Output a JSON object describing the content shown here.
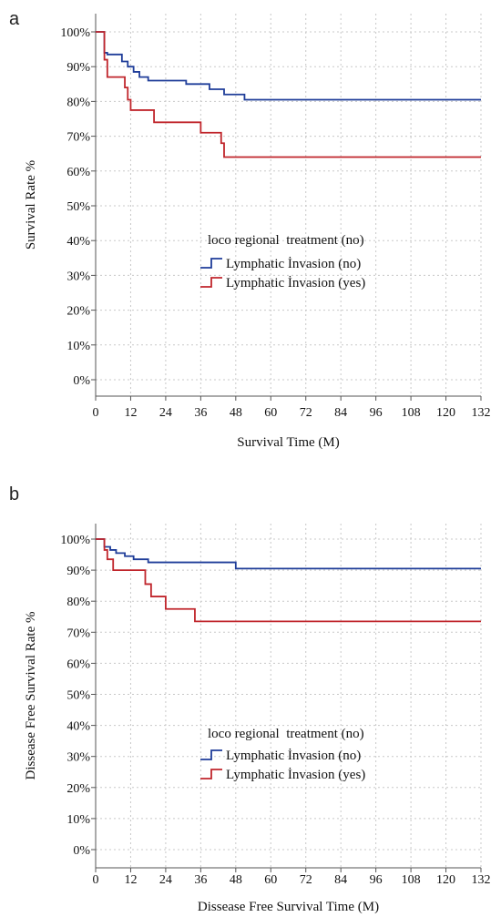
{
  "chart_data": [
    {
      "panel_label": "a",
      "type": "line",
      "step": true,
      "title": "",
      "xlabel": "Survival Time (M)",
      "ylabel": "Survival Rate %",
      "xlim": [
        0,
        132
      ],
      "ylim": [
        0,
        100
      ],
      "x_ticks": [
        0,
        12,
        24,
        36,
        48,
        60,
        72,
        84,
        96,
        108,
        120,
        132
      ],
      "x_tick_labels": [
        "0",
        "12",
        "24",
        "36",
        "48",
        "60",
        "72",
        "84",
        "96",
        "108",
        "120",
        "132"
      ],
      "y_ticks": [
        0,
        10,
        20,
        30,
        40,
        50,
        60,
        70,
        80,
        90,
        100
      ],
      "y_tick_labels": [
        "0%",
        "10%",
        "20%",
        "30%",
        "40%",
        "50%",
        "60%",
        "70%",
        "80%",
        "90%",
        "100%"
      ],
      "grid": true,
      "legend_title": "loco regional  treatment (no)",
      "legend_position": "center-right",
      "series": [
        {
          "name": "Lymphatic İnvasion (no)",
          "color": "#1f3d99",
          "x": [
            0,
            3,
            4,
            9,
            11,
            13,
            15,
            18,
            31,
            39,
            44,
            48,
            51,
            132
          ],
          "y": [
            100,
            94,
            93.5,
            91.5,
            90,
            88.5,
            87,
            86,
            85,
            83.5,
            82,
            82,
            80.5,
            80.5
          ]
        },
        {
          "name": "Lymphatic İnvasion (yes)",
          "color": "#c0262c",
          "x": [
            0,
            3,
            4,
            10,
            11,
            12,
            20,
            36,
            43,
            44,
            132
          ],
          "y": [
            100,
            92,
            87,
            84,
            80.5,
            77.5,
            74,
            71,
            68,
            64,
            64
          ]
        }
      ]
    },
    {
      "panel_label": "b",
      "type": "line",
      "step": true,
      "title": "",
      "xlabel": "Dissease Free Survival Time (M)",
      "ylabel": "Dissease Free Survival Rate %",
      "xlim": [
        0,
        132
      ],
      "ylim": [
        0,
        100
      ],
      "x_ticks": [
        0,
        12,
        24,
        36,
        48,
        60,
        72,
        84,
        96,
        108,
        120,
        132
      ],
      "x_tick_labels": [
        "0",
        "12",
        "24",
        "36",
        "48",
        "60",
        "72",
        "84",
        "96",
        "108",
        "120",
        "132"
      ],
      "y_ticks": [
        0,
        10,
        20,
        30,
        40,
        50,
        60,
        70,
        80,
        90,
        100
      ],
      "y_tick_labels": [
        "0%",
        "10%",
        "20%",
        "30%",
        "40%",
        "50%",
        "60%",
        "70%",
        "80%",
        "90%",
        "100%"
      ],
      "grid": true,
      "legend_title": "loco regional  treatment (no)",
      "legend_position": "center-right",
      "series": [
        {
          "name": "Lymphatic İnvasion (no)",
          "color": "#1f3d99",
          "x": [
            0,
            3,
            5,
            7,
            10,
            13,
            18,
            48,
            132
          ],
          "y": [
            100,
            97.5,
            96.5,
            95.5,
            94.5,
            93.5,
            92.5,
            90.5,
            90.5
          ]
        },
        {
          "name": "Lymphatic İnvasion (yes)",
          "color": "#c0262c",
          "x": [
            0,
            3,
            4,
            6,
            17,
            19,
            24,
            34,
            132
          ],
          "y": [
            100,
            96.5,
            93.5,
            90,
            85.5,
            81.5,
            77.5,
            73.5,
            73.5
          ]
        }
      ]
    }
  ]
}
